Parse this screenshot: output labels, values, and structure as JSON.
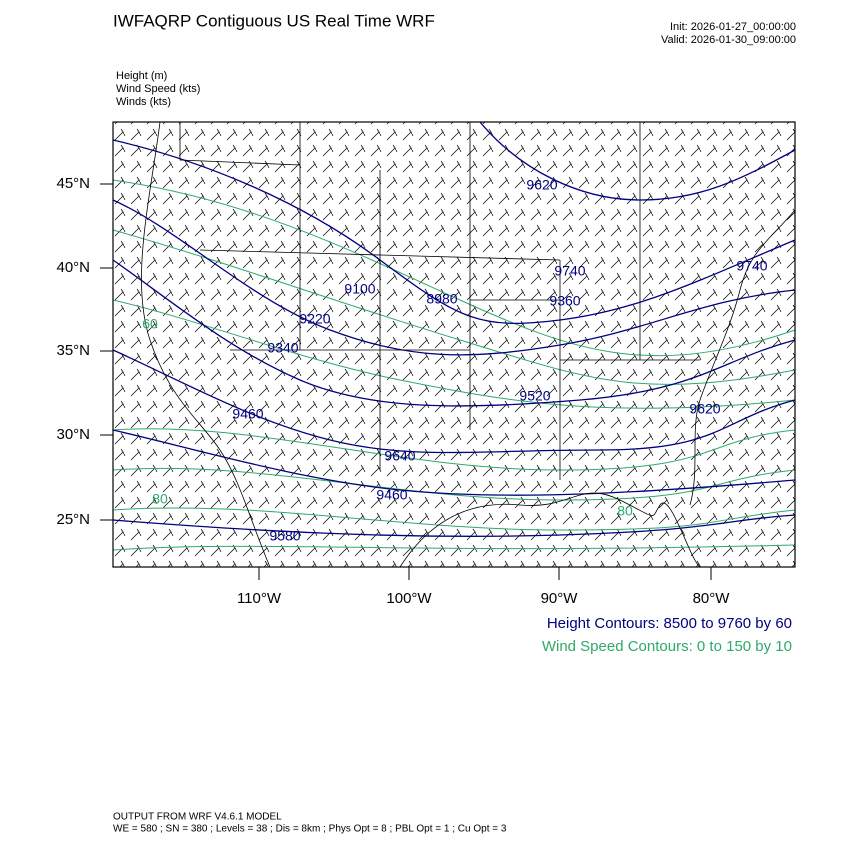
{
  "header": {
    "title": "IWFAQRP Contiguous US Real Time WRF",
    "init": "Init: 2026-01-27_00:00:00",
    "valid": "Valid: 2026-01-30_09:00:00"
  },
  "fields": [
    "Height   (m)",
    "Wind Speed   (kts)",
    "Winds   (kts)"
  ],
  "map": {
    "lat_labels": [
      "45°N",
      "40°N",
      "35°N",
      "30°N",
      "25°N"
    ],
    "lon_labels": [
      "110°W",
      "100°W",
      "90°W",
      "80°W"
    ],
    "height_labels": [
      "9620",
      "9100",
      "8980",
      "9740",
      "9360",
      "9220",
      "9340",
      "9460",
      "9520",
      "9640",
      "9460",
      "9580",
      "9620",
      "9740"
    ],
    "wind_labels": [
      "80",
      "80",
      "60"
    ]
  },
  "legend": {
    "height": "Height Contours: 8500 to 9760 by 60",
    "wind": "Wind Speed Contours: 0 to 150 by 10"
  },
  "footer": {
    "line1": "OUTPUT FROM WRF V4.6.1 MODEL",
    "line2": "WE = 580 ; SN = 380 ; Levels = 38 ; Dis = 8km ; Phys Opt = 8 ; PBL Opt = 1 ; Cu Opt = 3"
  }
}
